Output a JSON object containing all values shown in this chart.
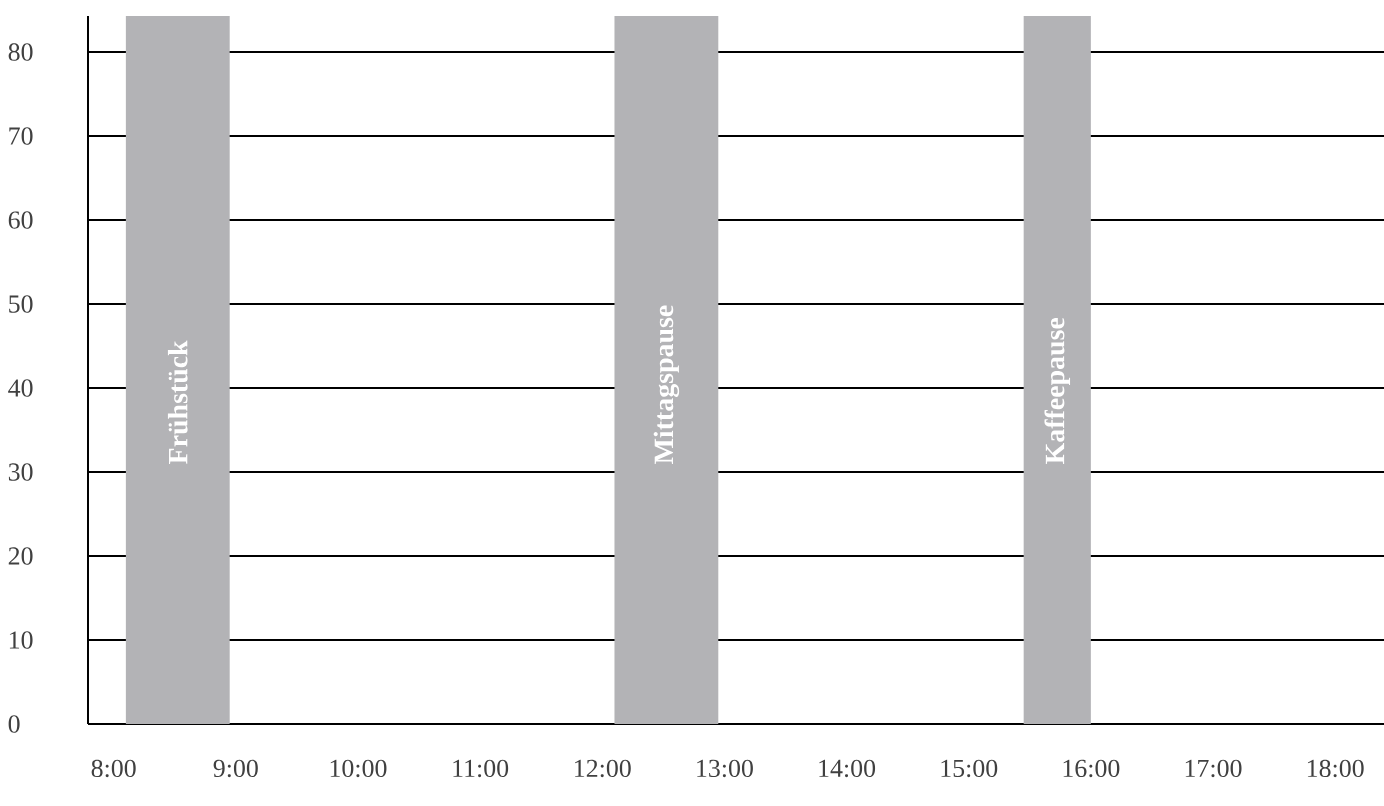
{
  "chart_data": {
    "type": "line",
    "xlim": [
      7.79,
      18.4
    ],
    "ylim": [
      0,
      84.3
    ],
    "xticks": [
      {
        "value": 8,
        "label": "8:00"
      },
      {
        "value": 9,
        "label": "9:00"
      },
      {
        "value": 10,
        "label": "10:00"
      },
      {
        "value": 11,
        "label": "11:00"
      },
      {
        "value": 12,
        "label": "12:00"
      },
      {
        "value": 13,
        "label": "13:00"
      },
      {
        "value": 14,
        "label": "14:00"
      },
      {
        "value": 15,
        "label": "15:00"
      },
      {
        "value": 16,
        "label": "16:00"
      },
      {
        "value": 17,
        "label": "17:00"
      },
      {
        "value": 18,
        "label": "18:00"
      }
    ],
    "yticks": [
      0,
      10,
      20,
      30,
      40,
      50,
      60,
      70,
      80
    ],
    "grid": "y",
    "bands": [
      {
        "axis": "x",
        "from": 8.1,
        "to": 8.95,
        "label": "Frühstück",
        "color": "#b3b3b6"
      },
      {
        "axis": "x",
        "from": 12.1,
        "to": 12.95,
        "label": "Mittagspause",
        "color": "#b3b3b6"
      },
      {
        "axis": "x",
        "from": 15.45,
        "to": 16.0,
        "label": "Kaffeepause",
        "color": "#b3b3b6"
      }
    ]
  }
}
